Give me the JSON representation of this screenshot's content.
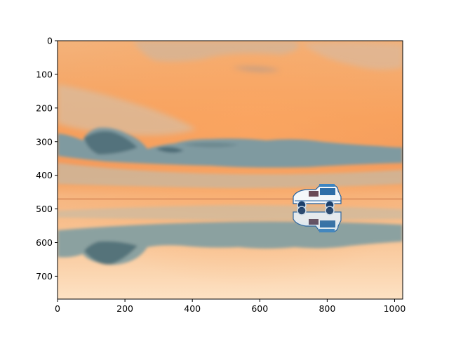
{
  "figure": {
    "image_description_icon": "photo-inverted-salt-flat-with-jeep",
    "xaxis": {
      "ticks": [
        "0",
        "200",
        "400",
        "600",
        "800",
        "1000"
      ],
      "tick_values": [
        0,
        200,
        400,
        600,
        800,
        1000
      ],
      "range": [
        0,
        1024
      ]
    },
    "yaxis": {
      "ticks": [
        "0",
        "100",
        "200",
        "300",
        "400",
        "500",
        "600",
        "700"
      ],
      "tick_values": [
        0,
        100,
        200,
        300,
        400,
        500,
        600,
        700
      ],
      "range": [
        768,
        0
      ]
    }
  },
  "colors": {
    "sky_top": "#f2b47e",
    "sky_mid": "#f79a55",
    "horizon": "#f08f52",
    "cloud_dark": "#6a8a92",
    "cloud_light": "#d8cfbb",
    "reflection": "#fad2a8",
    "jeep_blue": "#1f5fa0"
  }
}
